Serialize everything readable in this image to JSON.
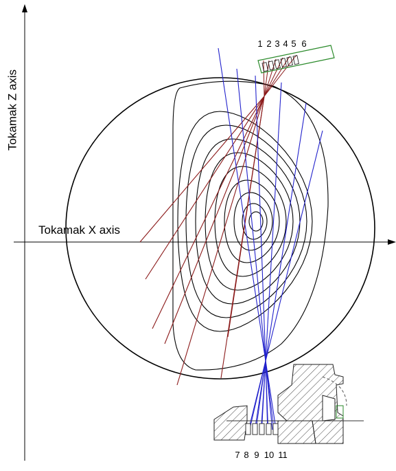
{
  "labels": {
    "z_axis": "Tokamak Z axis",
    "x_axis": "Tokamak X axis"
  },
  "upper_channels": [
    "1",
    "2",
    "3",
    "4",
    "5",
    "6"
  ],
  "lower_channels": [
    "7",
    "8",
    "9",
    "10",
    "11"
  ],
  "colors": {
    "axes": "#000000",
    "flux_surfaces": "#000000",
    "upper_chords": "#8b1a1a",
    "lower_chords": "#2222cc",
    "collimator_box": "#2a8a2a",
    "port_hatch": "#333333"
  },
  "icons": [
    "axis-arrow-icon",
    "detector-collimator-icon",
    "port-structure-icon"
  ]
}
